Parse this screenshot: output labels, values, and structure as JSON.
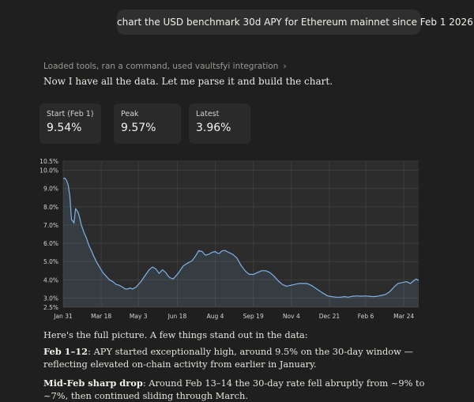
{
  "user_message": "chart the USD benchmark 30d APY for Ethereum mainnet since Feb 1 2026",
  "tools_summary": "Loaded tools, ran a command, used vaultsfyi integration",
  "intro_text": "Now I have all the data. Let me parse it and build the chart.",
  "stats": [
    {
      "label": "Start (Feb 1)",
      "value": "9.54%"
    },
    {
      "label": "Peak",
      "value": "9.57%"
    },
    {
      "label": "Latest",
      "value": "3.96%"
    }
  ],
  "chart_data": {
    "type": "area",
    "color": "#7fb3e8",
    "ylim": [
      2.5,
      10.5
    ],
    "yticks": [
      2.5,
      3.0,
      4.0,
      5.0,
      6.0,
      7.0,
      8.0,
      9.0,
      10.0,
      10.5
    ],
    "ytick_labels": [
      "2.5%",
      "3.0%",
      "4.0%",
      "5.0%",
      "6.0%",
      "7.0%",
      "8.0%",
      "9.0%",
      "10.0%",
      "10.5%"
    ],
    "xlim": [
      0,
      430
    ],
    "xticks": [
      0,
      46,
      91,
      138,
      184,
      230,
      276,
      322,
      366,
      412
    ],
    "xtick_labels": [
      "Jan 31",
      "Mar 18",
      "May 3",
      "Jun 18",
      "Aug 4",
      "Sep 19",
      "Nov 4",
      "Dec 21",
      "Feb 6",
      "Mar 24"
    ],
    "x": [
      0,
      2,
      4,
      6,
      8,
      10,
      12,
      13,
      15,
      18,
      20,
      22,
      25,
      28,
      31,
      34,
      37,
      40,
      44,
      48,
      52,
      56,
      60,
      64,
      68,
      72,
      75,
      78,
      81,
      84,
      86,
      88,
      91,
      94,
      97,
      100,
      104,
      108,
      112,
      116,
      120,
      124,
      127,
      130,
      133,
      136,
      139,
      142,
      145,
      148,
      152,
      156,
      160,
      164,
      168,
      172,
      176,
      180,
      184,
      187,
      189,
      191,
      193,
      196,
      198,
      200,
      205,
      210,
      215,
      220,
      225,
      230,
      235,
      240,
      245,
      250,
      255,
      260,
      265,
      270,
      275,
      280,
      285,
      290,
      295,
      300,
      305,
      310,
      315,
      320,
      325,
      330,
      335,
      340,
      345,
      350,
      355,
      360,
      365,
      370,
      375,
      380,
      385,
      390,
      395,
      400,
      405,
      410,
      415,
      420,
      424,
      427,
      430
    ],
    "y": [
      9.54,
      9.57,
      9.45,
      9.2,
      8.6,
      7.3,
      7.2,
      7.1,
      7.9,
      7.7,
      7.4,
      7.0,
      6.6,
      6.3,
      5.9,
      5.6,
      5.3,
      5.0,
      4.7,
      4.4,
      4.2,
      4.0,
      3.9,
      3.75,
      3.7,
      3.6,
      3.5,
      3.5,
      3.55,
      3.5,
      3.55,
      3.6,
      3.75,
      3.9,
      4.1,
      4.3,
      4.55,
      4.7,
      4.6,
      4.35,
      4.55,
      4.4,
      4.2,
      4.1,
      4.05,
      4.2,
      4.35,
      4.55,
      4.75,
      4.85,
      4.95,
      5.05,
      5.3,
      5.6,
      5.55,
      5.35,
      5.4,
      5.5,
      5.55,
      5.45,
      5.45,
      5.55,
      5.6,
      5.6,
      5.55,
      5.5,
      5.4,
      5.2,
      4.8,
      4.5,
      4.3,
      4.3,
      4.4,
      4.5,
      4.5,
      4.4,
      4.2,
      3.95,
      3.75,
      3.65,
      3.7,
      3.75,
      3.8,
      3.8,
      3.8,
      3.7,
      3.55,
      3.4,
      3.25,
      3.12,
      3.08,
      3.05,
      3.05,
      3.08,
      3.05,
      3.1,
      3.12,
      3.1,
      3.12,
      3.1,
      3.08,
      3.1,
      3.15,
      3.2,
      3.35,
      3.6,
      3.8,
      3.85,
      3.9,
      3.8,
      3.95,
      4.05,
      3.96
    ]
  },
  "paragraphs": [
    {
      "lead": "",
      "text": "Here's the full picture. A few things stand out in the data:"
    },
    {
      "lead": "Feb 1–12",
      "text": ": APY started exceptionally high, around 9.5% on the 30-day window — reflecting elevated on-chain activity from earlier in January."
    },
    {
      "lead": "Mid-Feb sharp drop",
      "text": ": Around Feb 13–14 the 30-day rate fell abruptly from ~9% to ~7%, then continued sliding through March."
    }
  ]
}
